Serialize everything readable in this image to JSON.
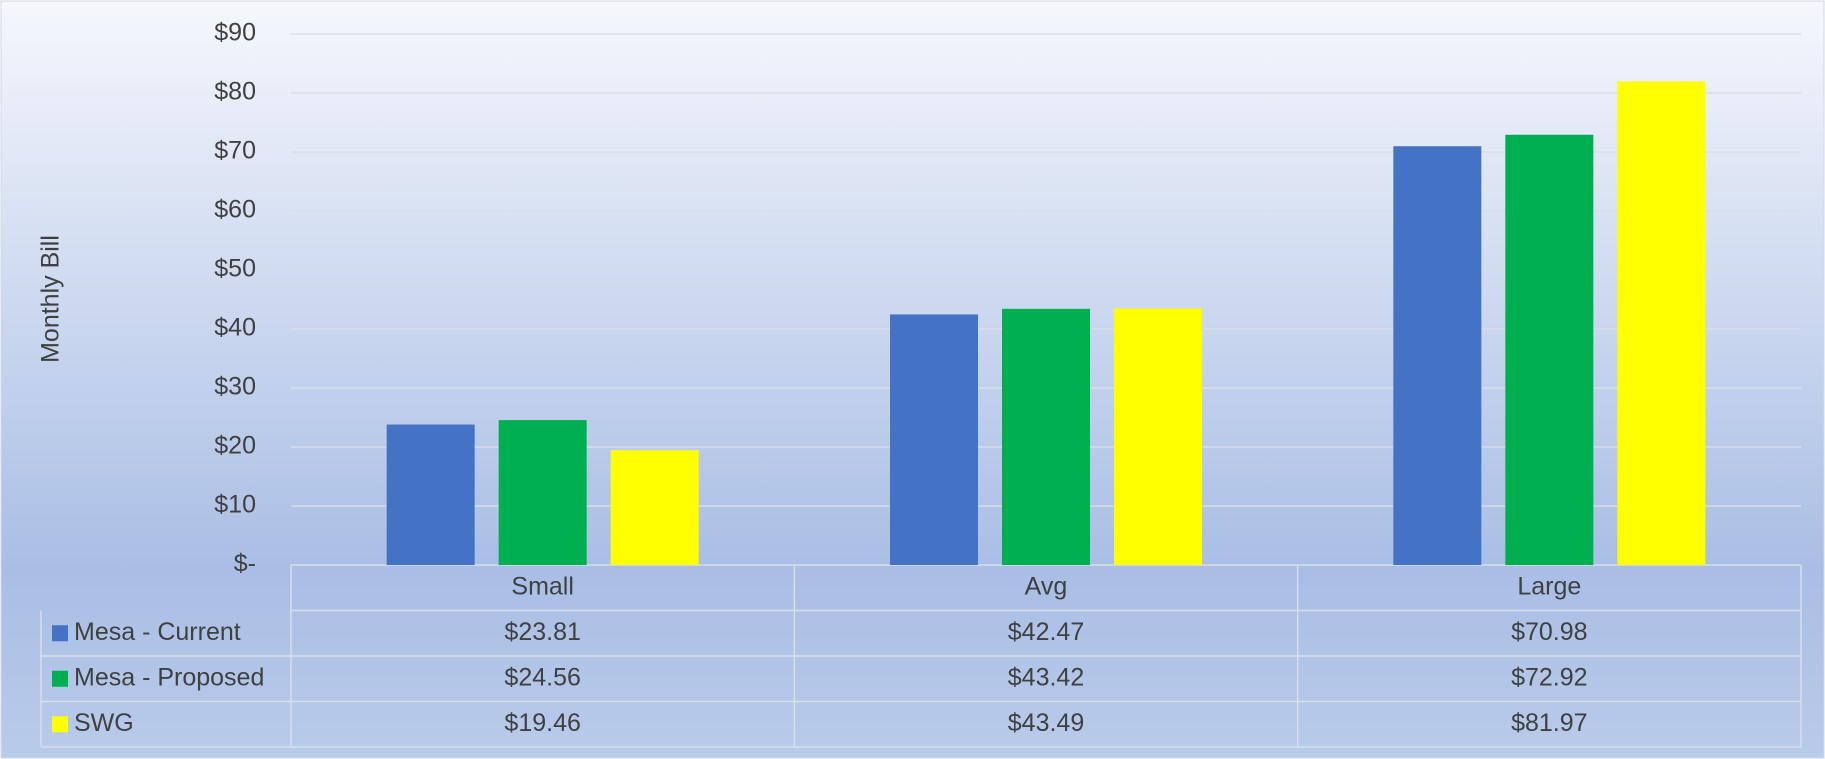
{
  "chart_data": {
    "type": "bar",
    "y_label": "Monthly Bill",
    "categories": [
      "Small",
      "Avg",
      "Large"
    ],
    "series": [
      {
        "name": "Mesa - Current",
        "color": "#4472c4",
        "values": [
          23.81,
          42.47,
          70.98
        ],
        "value_labels": [
          "$23.81",
          "$42.47",
          "$70.98"
        ]
      },
      {
        "name": "Mesa - Proposed",
        "color": "#00b050",
        "values": [
          24.56,
          43.42,
          72.92
        ],
        "value_labels": [
          "$24.56",
          "$43.42",
          "$72.92"
        ]
      },
      {
        "name": "SWG",
        "color": "#ffff00",
        "values": [
          19.46,
          43.49,
          81.97
        ],
        "value_labels": [
          "$19.46",
          "$43.49",
          "$81.97"
        ]
      }
    ],
    "ylim": [
      0,
      90
    ],
    "yticks": [
      {
        "value": 0,
        "label": "$-"
      },
      {
        "value": 10,
        "label": "$10"
      },
      {
        "value": 20,
        "label": "$20"
      },
      {
        "value": 30,
        "label": "$30"
      },
      {
        "value": 40,
        "label": "$40"
      },
      {
        "value": 50,
        "label": "$50"
      },
      {
        "value": 60,
        "label": "$60"
      },
      {
        "value": 70,
        "label": "$70"
      },
      {
        "value": 80,
        "label": "$80"
      },
      {
        "value": 90,
        "label": "$90"
      }
    ],
    "grid": true,
    "data_table": true
  }
}
